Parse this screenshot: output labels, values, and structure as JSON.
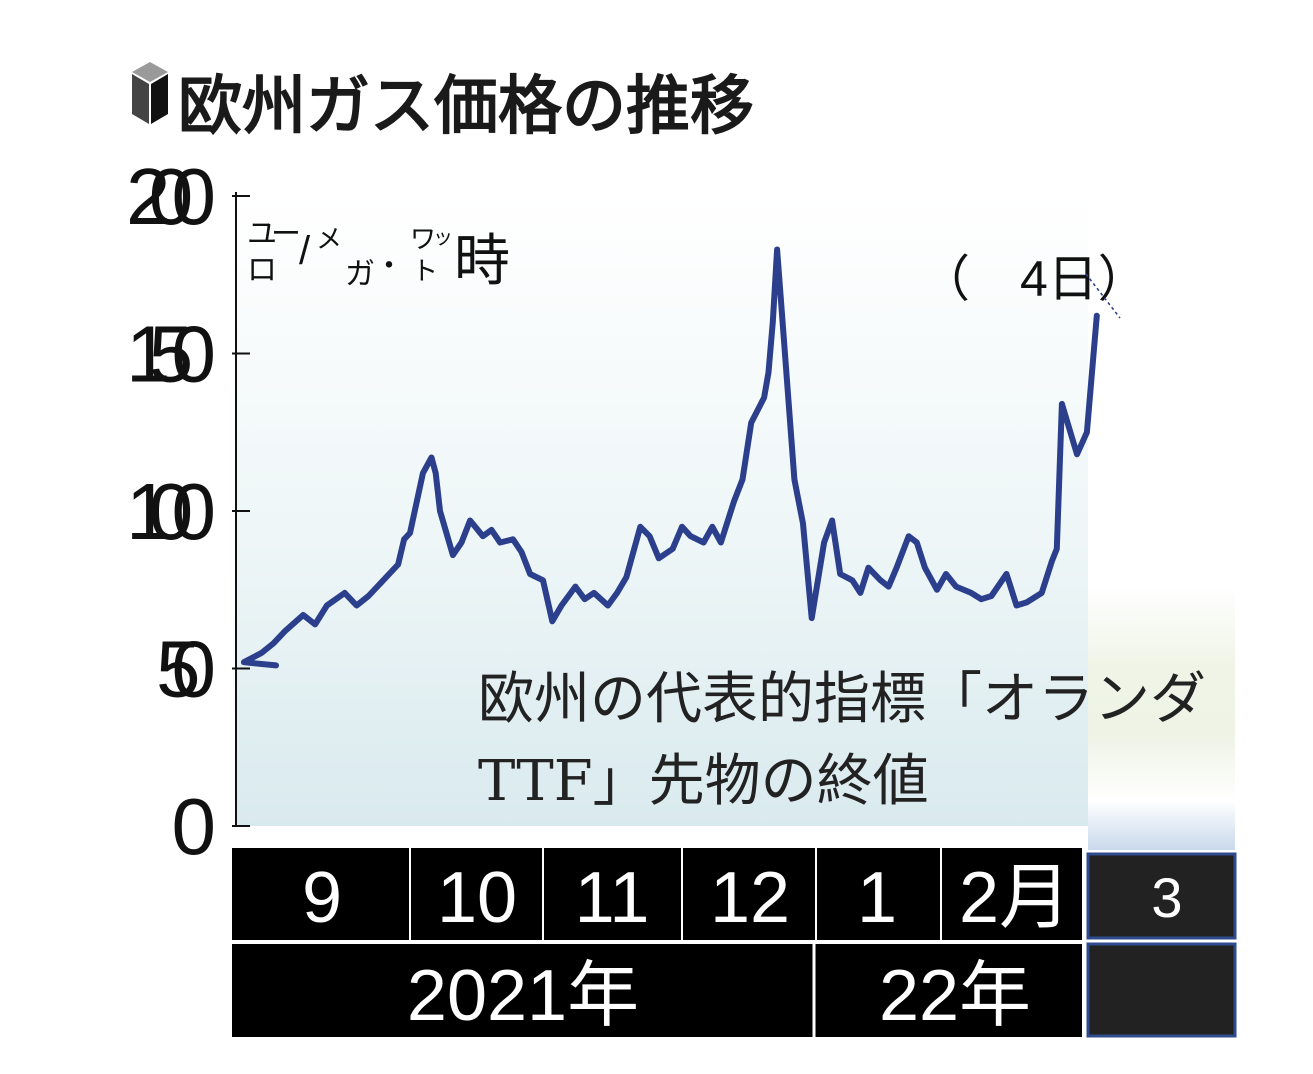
{
  "title": "欧州ガス価格の推移",
  "colors": {
    "line": "#2b3f8c",
    "axis_band": "#000000",
    "extra_box_border": "#2f4b8f",
    "extra_box_fill": "#222222"
  },
  "chart_data": {
    "type": "line",
    "title": "欧州ガス価格の推移",
    "unit_label": {
      "top_left": "ユ",
      "top_dash": "ー",
      "bottom_left": "ロ",
      "slash": "/",
      "me": "メ",
      "ga": "ガ",
      "dot": "・",
      "wa": "ワ",
      "tsu": "ッ",
      "to": "ト",
      "ji": "時"
    },
    "annotation": "（　4日）",
    "note_line1": "欧州の代表的指標「オランダ",
    "note_line2": "TTF」先物の終値",
    "ylim": [
      0,
      200
    ],
    "yticks": [
      "0",
      "50",
      "100",
      "150",
      "200"
    ],
    "grid": false,
    "months": [
      "9",
      "10",
      "11",
      "12",
      "1",
      "2月",
      "3"
    ],
    "years": [
      "2021年",
      "22年"
    ],
    "series": [
      {
        "x": [
          "2021-09-01",
          "2021-09-03",
          "2021-09-06",
          "2021-09-08",
          "2021-09-10",
          "2021-09-13",
          "2021-09-15",
          "2021-09-17",
          "2021-09-20",
          "2021-09-22",
          "2021-09-24",
          "2021-09-27",
          "2021-09-29",
          "2021-09-30",
          "2021-10-01",
          "2021-10-04",
          "2021-10-06",
          "2021-10-07",
          "2021-10-08",
          "2021-10-11",
          "2021-10-13",
          "2021-10-15",
          "2021-10-18",
          "2021-10-20",
          "2021-10-22",
          "2021-10-25",
          "2021-10-27",
          "2021-10-29",
          "2021-11-01",
          "2021-11-03",
          "2021-11-05",
          "2021-11-08",
          "2021-11-10",
          "2021-11-12",
          "2021-11-15",
          "2021-11-17",
          "2021-11-19",
          "2021-11-22",
          "2021-11-24",
          "2021-11-26",
          "2021-11-29",
          "2021-12-01",
          "2021-12-03",
          "2021-12-06",
          "2021-12-08",
          "2021-12-10",
          "2021-12-13",
          "2021-12-15",
          "2021-12-17",
          "2021-12-20",
          "2021-12-21",
          "2021-12-22",
          "2021-12-23",
          "2021-12-24",
          "2021-12-27",
          "2021-12-29",
          "2021-12-31",
          "2022-01-03",
          "2022-01-05",
          "2022-01-07",
          "2022-01-10",
          "2022-01-12",
          "2022-01-14",
          "2022-01-17",
          "2022-01-19",
          "2022-01-21",
          "2022-01-24",
          "2022-01-26",
          "2022-01-28",
          "2022-01-31",
          "2022-02-02",
          "2022-02-04",
          "2022-02-07",
          "2022-02-09",
          "2022-02-11",
          "2022-02-14",
          "2022-02-16",
          "2022-02-18",
          "2022-02-21",
          "2022-02-23",
          "2022-02-24",
          "2022-02-25",
          "2022-02-28",
          "2022-03-02",
          "2022-03-04"
        ],
        "y": [
          51,
          52,
          55,
          58,
          62,
          67,
          64,
          70,
          74,
          70,
          73,
          79,
          83,
          91,
          93,
          112,
          117,
          112,
          100,
          86,
          90,
          97,
          92,
          94,
          90,
          91,
          87,
          80,
          78,
          65,
          70,
          76,
          72,
          74,
          70,
          74,
          79,
          95,
          92,
          85,
          88,
          95,
          92,
          90,
          95,
          90,
          103,
          110,
          128,
          136,
          144,
          160,
          183,
          165,
          110,
          96,
          66,
          90,
          97,
          80,
          78,
          74,
          82,
          78,
          76,
          82,
          92,
          90,
          82,
          75,
          80,
          76,
          74,
          72,
          73,
          80,
          70,
          71,
          74,
          84,
          88,
          134,
          118,
          125,
          162
        ]
      }
    ]
  }
}
